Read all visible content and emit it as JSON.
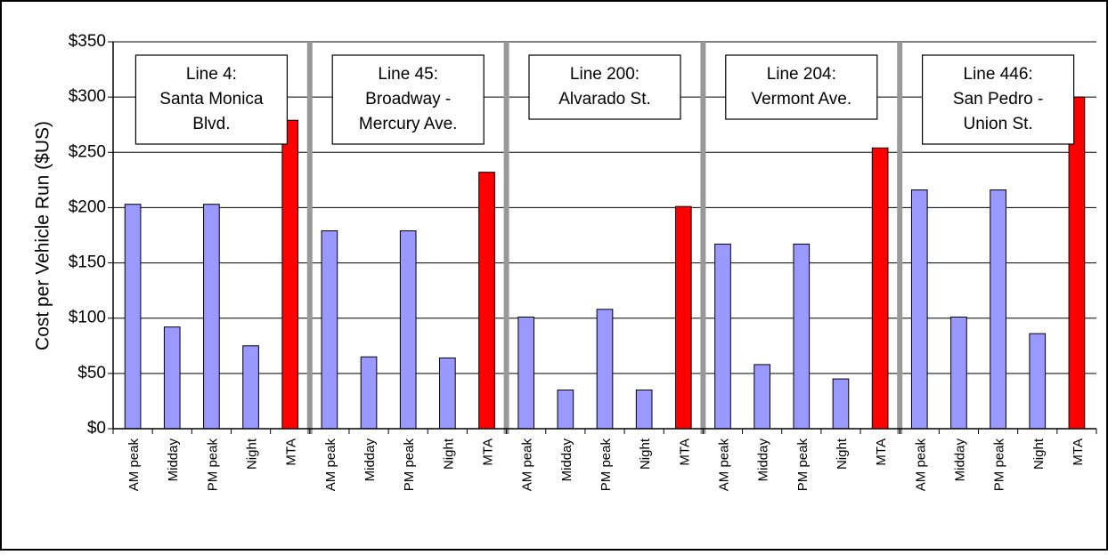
{
  "chart_data": {
    "type": "bar",
    "ylabel": "Cost per Vehicle Run ($US)",
    "ylim": [
      0,
      350
    ],
    "yticks": [
      0,
      50,
      100,
      150,
      200,
      250,
      300,
      350
    ],
    "ytick_labels": [
      "$0",
      "$50",
      "$100",
      "$150",
      "$200",
      "$250",
      "$300",
      "$350"
    ],
    "grid": true,
    "colors": {
      "period": "#9999ff",
      "mta": "#ff0000",
      "divider": "#999999"
    },
    "groups": [
      {
        "label_lines": [
          "Line 4:",
          "Santa Monica",
          "Blvd."
        ],
        "categories": [
          "AM peak",
          "Midday",
          "PM peak",
          "Night",
          "MTA"
        ],
        "values": [
          203,
          92,
          203,
          75,
          279
        ]
      },
      {
        "label_lines": [
          "Line 45:",
          "Broadway -",
          "Mercury Ave."
        ],
        "categories": [
          "AM peak",
          "Midday",
          "PM peak",
          "Night",
          "MTA"
        ],
        "values": [
          179,
          65,
          179,
          64,
          232
        ]
      },
      {
        "label_lines": [
          "Line 200:",
          "Alvarado St."
        ],
        "categories": [
          "AM peak",
          "Midday",
          "PM peak",
          "Night",
          "MTA"
        ],
        "values": [
          101,
          35,
          108,
          35,
          201
        ]
      },
      {
        "label_lines": [
          "Line 204:",
          "Vermont Ave."
        ],
        "categories": [
          "AM peak",
          "Midday",
          "PM peak",
          "Night",
          "MTA"
        ],
        "values": [
          167,
          58,
          167,
          45,
          254
        ]
      },
      {
        "label_lines": [
          "Line 446:",
          "San Pedro -",
          "Union St."
        ],
        "categories": [
          "AM peak",
          "Midday",
          "PM peak",
          "Night",
          "MTA"
        ],
        "values": [
          216,
          101,
          216,
          86,
          300
        ]
      }
    ]
  }
}
